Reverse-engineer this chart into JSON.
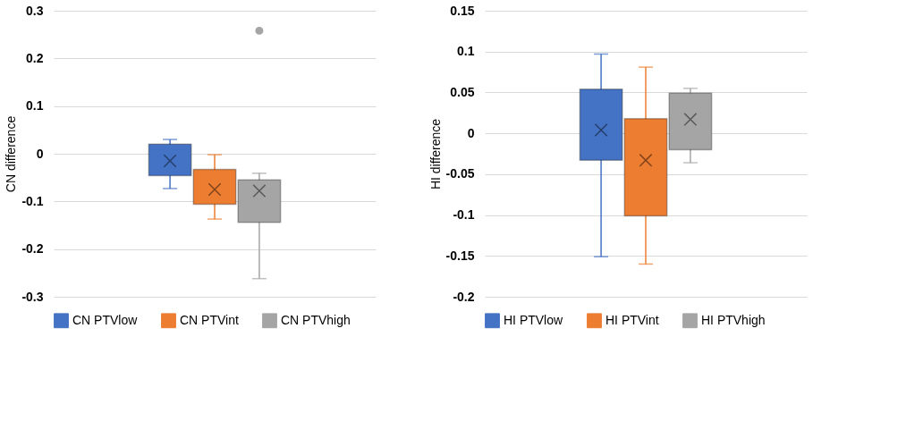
{
  "chart_data": [
    {
      "type": "box",
      "ylabel": "CN difference",
      "categories": [
        null
      ],
      "ylim": [
        -0.3,
        0.3
      ],
      "yticks": [
        -0.3,
        -0.2,
        -0.1,
        0,
        0.1,
        0.2,
        0.3
      ],
      "grid": "y",
      "legend": "bottom",
      "series": [
        {
          "name": "CN PTVlow",
          "color": "#4472c4",
          "boxes": [
            {
              "low": -0.073,
              "q1": -0.046,
              "median": -0.017,
              "q3": 0.02,
              "high": 0.03,
              "mean": -0.015
            }
          ]
        },
        {
          "name": "CN PTVint",
          "color": "#ed7d31",
          "boxes": [
            {
              "low": -0.137,
              "q1": -0.106,
              "median": -0.084,
              "q3": -0.033,
              "high": -0.002,
              "mean": -0.075
            }
          ]
        },
        {
          "name": "CN PTVhigh",
          "color": "#a5a5a5",
          "boxes": [
            {
              "low": -0.262,
              "q1": -0.144,
              "median": -0.093,
              "q3": -0.055,
              "high": -0.041,
              "mean": -0.078,
              "outliers": [
                0.258
              ]
            }
          ]
        }
      ]
    },
    {
      "type": "box",
      "ylabel": "HI difference",
      "categories": [
        null
      ],
      "ylim": [
        -0.2,
        0.15
      ],
      "yticks": [
        -0.2,
        -0.15,
        -0.1,
        -0.05,
        0,
        0.05,
        0.1,
        0.15
      ],
      "grid": "y",
      "legend": "bottom",
      "series": [
        {
          "name": "HI PTVlow",
          "color": "#4472c4",
          "boxes": [
            {
              "low": -0.151,
              "q1": -0.033,
              "median": 0.011,
              "q3": 0.054,
              "high": 0.097,
              "mean": 0.004
            }
          ]
        },
        {
          "name": "HI PTVint",
          "color": "#ed7d31",
          "boxes": [
            {
              "low": -0.16,
              "q1": -0.101,
              "median": -0.02,
              "q3": 0.018,
              "high": 0.081,
              "mean": -0.033
            }
          ]
        },
        {
          "name": "HI PTVhigh",
          "color": "#a5a5a5",
          "boxes": [
            {
              "low": -0.036,
              "q1": -0.02,
              "median": 0.024,
              "q3": 0.049,
              "high": 0.055,
              "mean": 0.017
            }
          ]
        }
      ]
    }
  ]
}
